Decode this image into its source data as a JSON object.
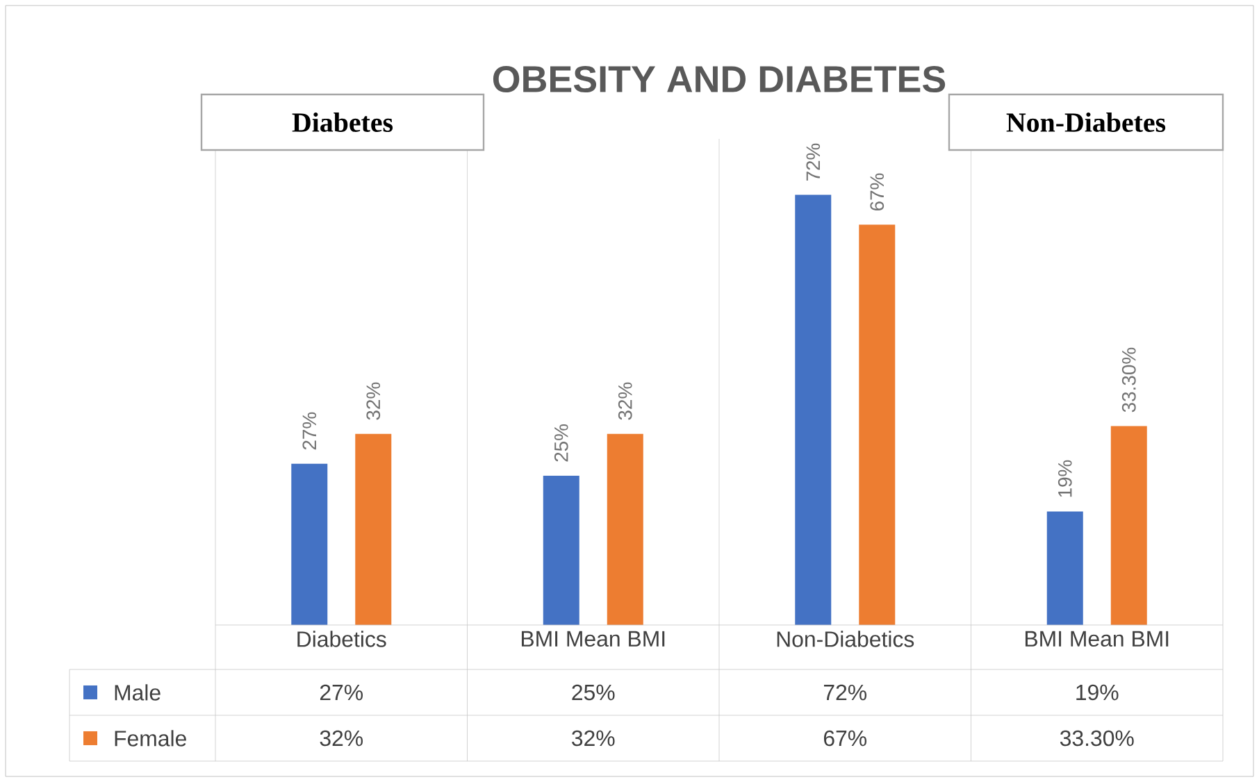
{
  "chart_data": {
    "type": "bar",
    "title": "OBESITY AND DIABETES",
    "categories": [
      "Diabetics",
      "BMI Mean BMI",
      "Non-Diabetics",
      "BMI Mean BMI"
    ],
    "series": [
      {
        "name": "Male",
        "color": "#4472c4",
        "values": [
          27,
          25,
          72,
          19
        ],
        "value_labels": [
          "27%",
          "25%",
          "72%",
          "19%"
        ]
      },
      {
        "name": "Female",
        "color": "#ed7d31",
        "values": [
          32,
          32,
          67,
          33.3
        ],
        "value_labels": [
          "32%",
          "32%",
          "67%",
          "33.30%"
        ]
      }
    ],
    "annotations": [
      "Diabetes",
      "Non-Diabetes"
    ],
    "grid": "x",
    "legend": "bottom left"
  }
}
